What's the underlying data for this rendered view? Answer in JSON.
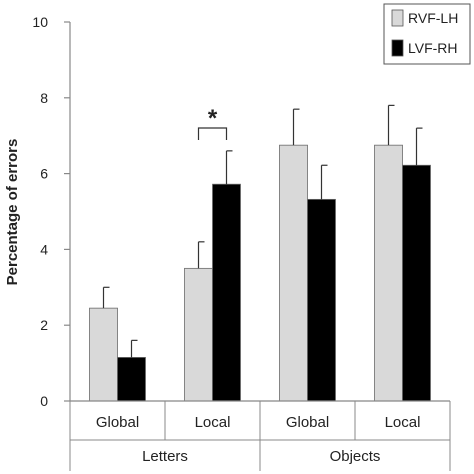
{
  "chart_data": {
    "type": "bar",
    "title": "",
    "xlabel": "",
    "ylabel": "Percentage of errors",
    "ylim": [
      0,
      10
    ],
    "yticks": [
      0,
      2,
      4,
      6,
      8,
      10
    ],
    "grid": false,
    "legend_position": "top-right",
    "categories": [
      "Global",
      "Local",
      "Global",
      "Local"
    ],
    "groups": [
      {
        "label": "Letters",
        "categories": [
          0,
          1
        ]
      },
      {
        "label": "Objects",
        "categories": [
          2,
          3
        ]
      }
    ],
    "series": [
      {
        "name": "RVF-LH",
        "color": "#d9d9d9",
        "values": [
          2.45,
          3.5,
          6.75,
          6.75
        ],
        "error": [
          0.55,
          0.7,
          0.95,
          1.05
        ]
      },
      {
        "name": "LVF-RH",
        "color": "#000000",
        "values": [
          1.15,
          5.72,
          5.32,
          6.22
        ],
        "error": [
          0.45,
          0.88,
          0.9,
          0.98
        ]
      }
    ],
    "annotations": [
      {
        "text": "*",
        "type": "significance-bracket",
        "category": 1
      }
    ]
  }
}
